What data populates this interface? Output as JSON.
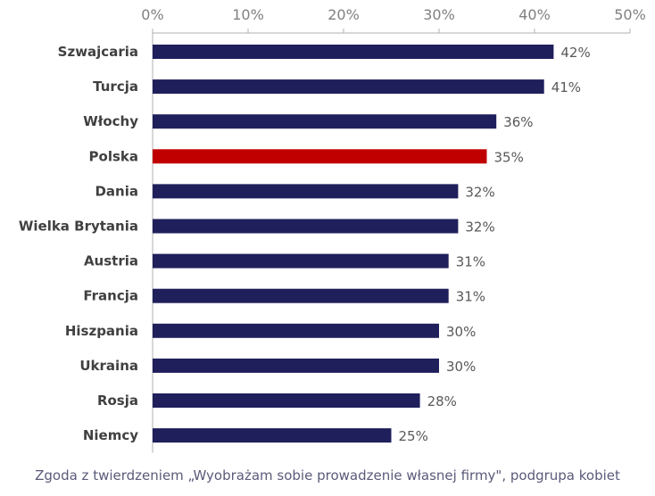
{
  "chart_data": {
    "type": "bar",
    "orientation": "horizontal",
    "categories": [
      "Szwajcaria",
      "Turcja",
      "Włochy",
      "Polska",
      "Dania",
      "Wielka Brytania",
      "Austria",
      "Francja",
      "Hiszpania",
      "Ukraina",
      "Rosja",
      "Niemcy"
    ],
    "values": [
      42,
      41,
      36,
      35,
      32,
      32,
      31,
      31,
      30,
      30,
      28,
      25
    ],
    "value_labels": [
      "42%",
      "41%",
      "36%",
      "35%",
      "32%",
      "32%",
      "31%",
      "31%",
      "30%",
      "30%",
      "28%",
      "25%"
    ],
    "x_ticks": [
      "0%",
      "10%",
      "20%",
      "30%",
      "40%",
      "50%"
    ],
    "xlim": [
      0,
      50
    ],
    "axis_position": "top",
    "grid": false,
    "highlight_category": "Polska",
    "colors": {
      "bar": "#1f1f5c",
      "highlight": "#c00000",
      "axis": "#b0b0b0"
    },
    "caption": "Zgoda z twierdzeniem „Wyobrażam sobie prowadzenie własnej firmy\", podgrupa kobiet"
  }
}
